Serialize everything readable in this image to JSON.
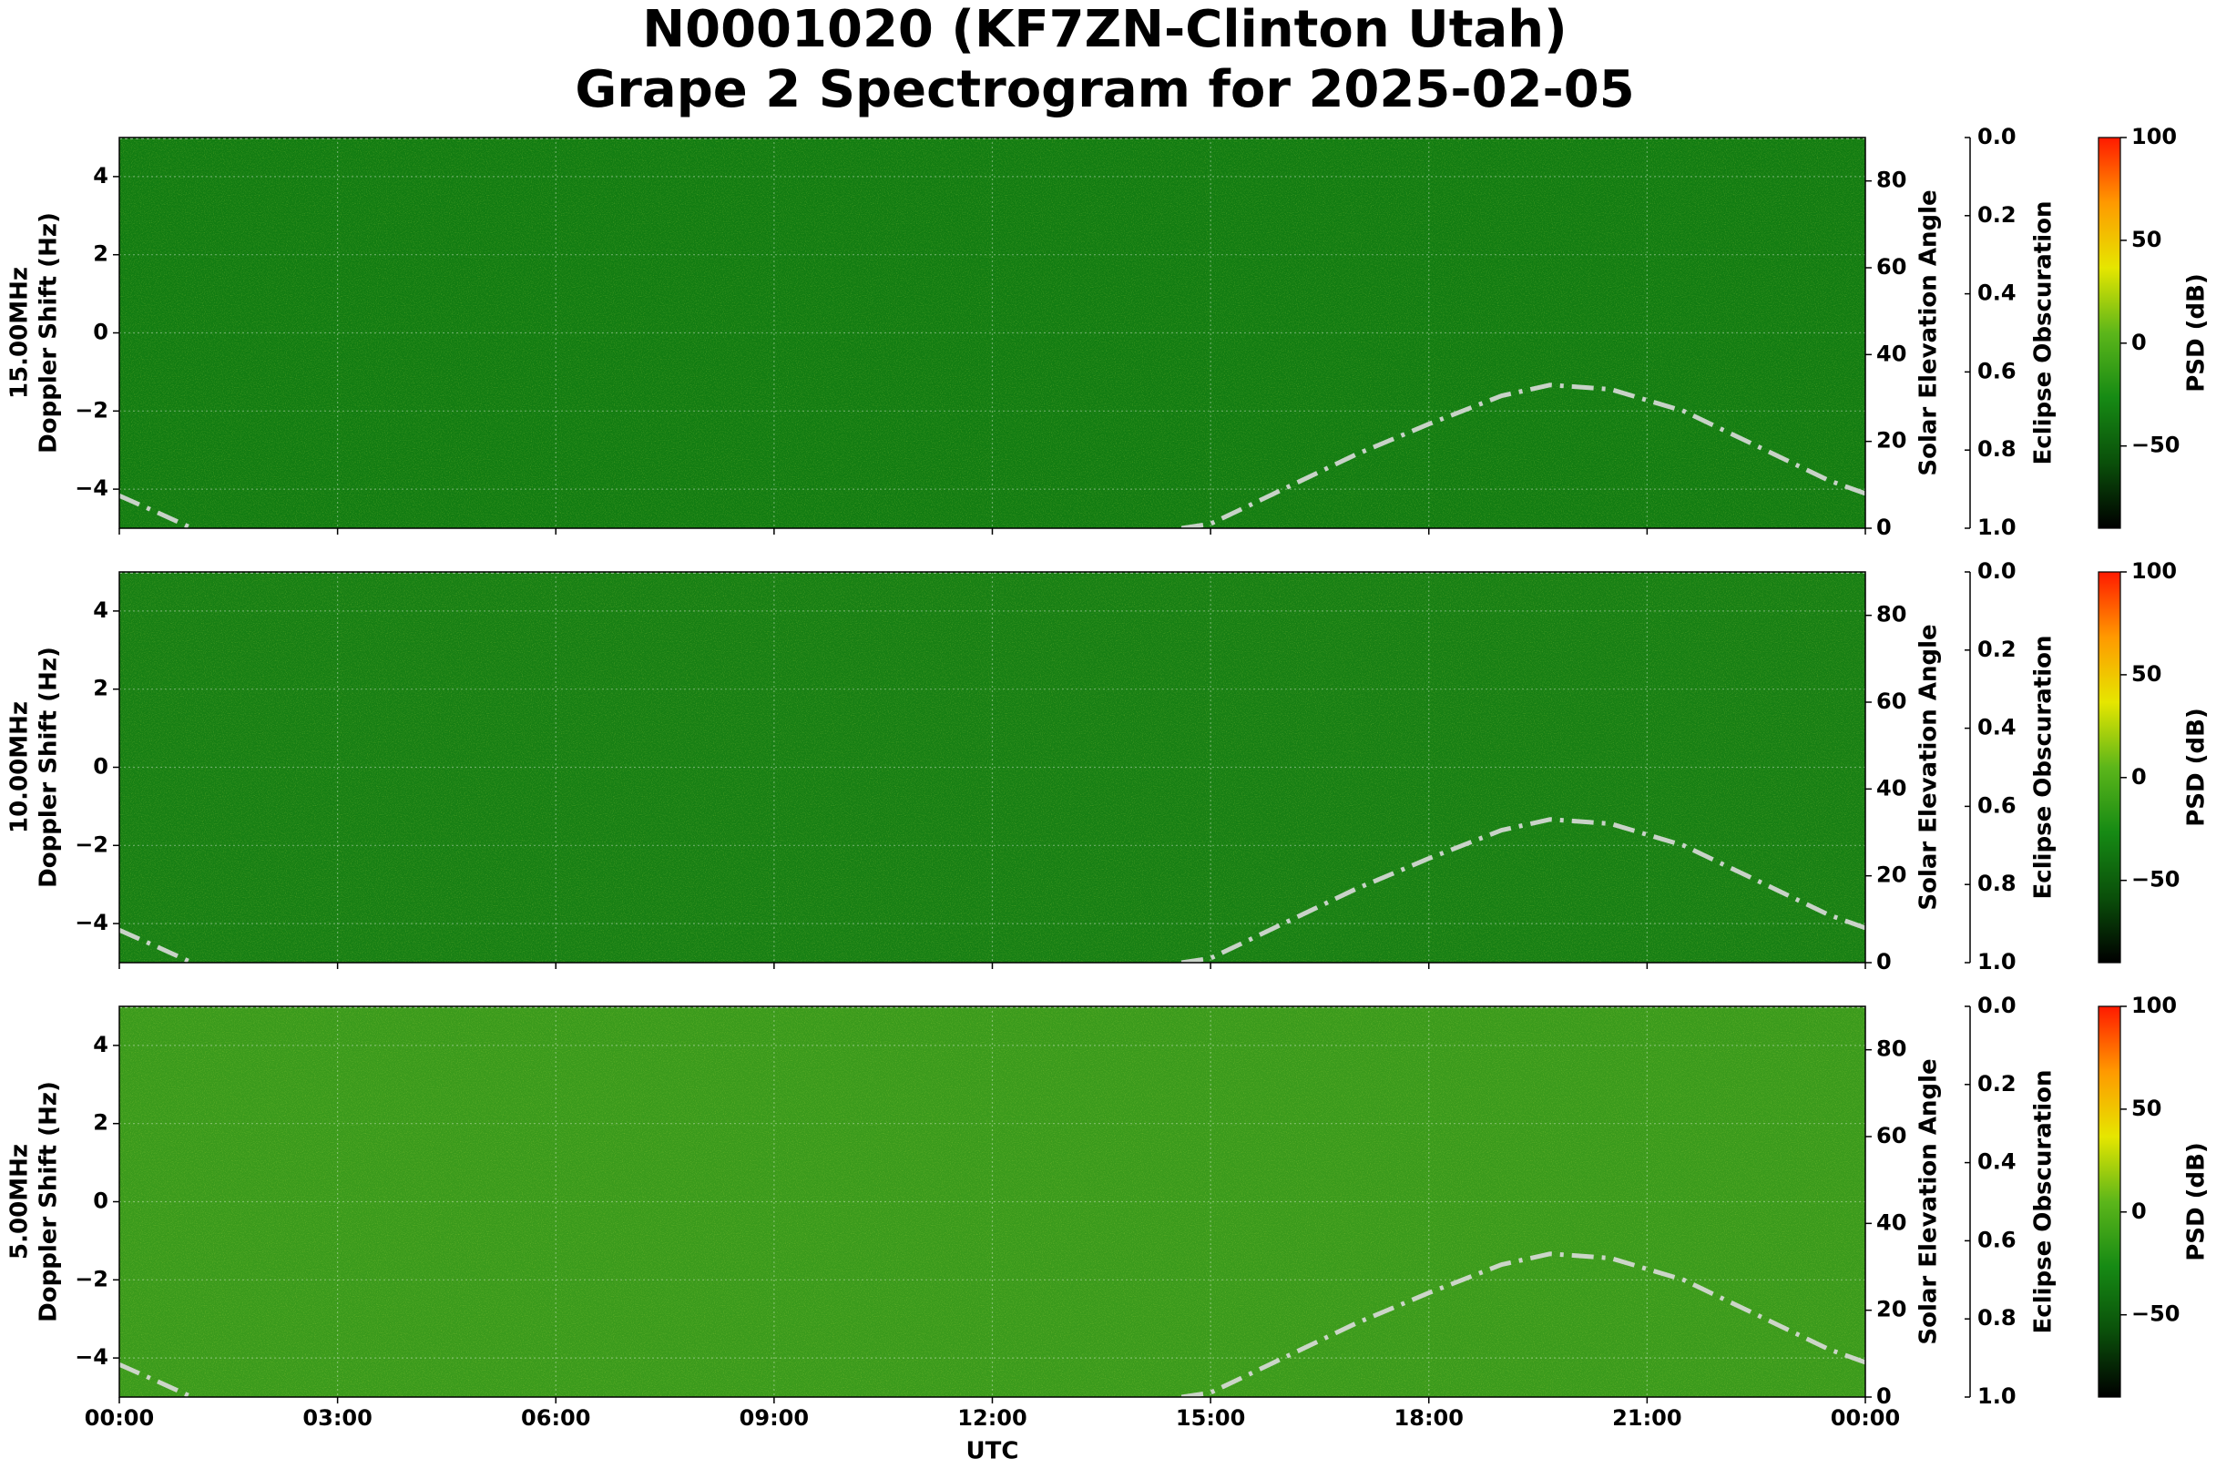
{
  "chart_data": {
    "type": "spectrogram",
    "title": [
      "N0001020 (KF7ZN-Clinton Utah)",
      "Grape 2 Spectrogram for 2025-02-05"
    ],
    "xlabel": "UTC",
    "xlim": [
      0,
      24
    ],
    "xticks": [
      {
        "value": 0,
        "label": "00:00"
      },
      {
        "value": 3,
        "label": "03:00"
      },
      {
        "value": 6,
        "label": "06:00"
      },
      {
        "value": 9,
        "label": "09:00"
      },
      {
        "value": 12,
        "label": "12:00"
      },
      {
        "value": 15,
        "label": "15:00"
      },
      {
        "value": 18,
        "label": "18:00"
      },
      {
        "value": 21,
        "label": "21:00"
      },
      {
        "value": 24,
        "label": "00:00"
      }
    ],
    "grid": true,
    "panels": [
      {
        "ylabel": [
          "15.00MHz",
          "Doppler Shift (Hz)"
        ],
        "background": "#127c12",
        "ylim": [
          -5,
          5
        ],
        "yticks": [
          {
            "value": -4,
            "label": "−4"
          },
          {
            "value": -2,
            "label": "−2"
          },
          0,
          2,
          4
        ],
        "y2label": "Solar Elevation Angle",
        "y2lim": [
          0,
          90
        ],
        "y2ticks": [
          0,
          20,
          40,
          60,
          80
        ],
        "series": [
          {
            "axis": "y2",
            "color": "#dcdcdc",
            "style": "dashdot",
            "x": [
              0,
              0.5,
              1,
              8,
              14.6,
              15,
              16,
              17,
              18,
              19,
              19.67,
              20.5,
              21.5,
              22.5,
              23.5,
              24
            ],
            "values": [
              7.5,
              3.8,
              0,
              null,
              0,
              1,
              9,
              17,
              24,
              30.5,
              33,
              32,
              27,
              19,
              11,
              8
            ]
          }
        ],
        "eclipse": {
          "label": "Eclipse Obscuration",
          "ylim": [
            1,
            0
          ],
          "yticks": [
            {
              "value": 0,
              "label": "0.0"
            },
            {
              "value": 0.2,
              "label": "0.2"
            },
            {
              "value": 0.4,
              "label": "0.4"
            },
            {
              "value": 0.6,
              "label": "0.6"
            },
            {
              "value": 0.8,
              "label": "0.8"
            },
            {
              "value": 1,
              "label": "1.0"
            }
          ]
        },
        "colorbar": {
          "label": "PSD (dB)",
          "clim": [
            -90,
            100
          ],
          "cticks": [
            {
              "value": -50,
              "label": "−50"
            },
            0,
            50,
            100
          ],
          "colormap": [
            "#000000",
            "#0a4f0a",
            "#168a14",
            "#5cb61a",
            "#e6e600",
            "#ff9900",
            "#ff1a00"
          ]
        }
      },
      {
        "ylabel": [
          "10.00MHz",
          "Doppler Shift (Hz)"
        ],
        "background": "#177f14",
        "ylim": [
          -5,
          5
        ],
        "yticks": [
          {
            "value": -4,
            "label": "−4"
          },
          {
            "value": -2,
            "label": "−2"
          },
          0,
          2,
          4
        ],
        "y2label": "Solar Elevation Angle",
        "y2lim": [
          0,
          90
        ],
        "y2ticks": [
          0,
          20,
          40,
          60,
          80
        ],
        "series": [
          {
            "axis": "y2",
            "color": "#dcdcdc",
            "style": "dashdot",
            "x": [
              0,
              0.5,
              1,
              8,
              14.6,
              15,
              16,
              17,
              18,
              19,
              19.67,
              20.5,
              21.5,
              22.5,
              23.5,
              24
            ],
            "values": [
              7.5,
              3.8,
              0,
              null,
              0,
              1,
              9,
              17,
              24,
              30.5,
              33,
              32,
              27,
              19,
              11,
              8
            ]
          }
        ],
        "eclipse": {
          "label": "Eclipse Obscuration",
          "ylim": [
            1,
            0
          ],
          "yticks": [
            {
              "value": 0,
              "label": "0.0"
            },
            {
              "value": 0.2,
              "label": "0.2"
            },
            {
              "value": 0.4,
              "label": "0.4"
            },
            {
              "value": 0.6,
              "label": "0.6"
            },
            {
              "value": 0.8,
              "label": "0.8"
            },
            {
              "value": 1,
              "label": "1.0"
            }
          ]
        },
        "colorbar": {
          "label": "PSD (dB)",
          "clim": [
            -90,
            100
          ],
          "cticks": [
            {
              "value": -50,
              "label": "−50"
            },
            0,
            50,
            100
          ],
          "colormap": [
            "#000000",
            "#0a4f0a",
            "#168a14",
            "#5cb61a",
            "#e6e600",
            "#ff9900",
            "#ff1a00"
          ]
        }
      },
      {
        "ylabel": [
          "5.00MHz",
          "Doppler Shift (Hz)"
        ],
        "background": "#3a9a1c",
        "ylim": [
          -5,
          5
        ],
        "yticks": [
          {
            "value": -4,
            "label": "−4"
          },
          {
            "value": -2,
            "label": "−2"
          },
          0,
          2,
          4
        ],
        "y2label": "Solar Elevation Angle",
        "y2lim": [
          0,
          90
        ],
        "y2ticks": [
          0,
          20,
          40,
          60,
          80
        ],
        "series": [
          {
            "axis": "y2",
            "color": "#dcdcdc",
            "style": "dashdot",
            "x": [
              0,
              0.5,
              1,
              8,
              14.6,
              15,
              16,
              17,
              18,
              19,
              19.67,
              20.5,
              21.5,
              22.5,
              23.5,
              24
            ],
            "values": [
              7.5,
              3.8,
              0,
              null,
              0,
              1,
              9,
              17,
              24,
              30.5,
              33,
              32,
              27,
              19,
              11,
              8
            ]
          }
        ],
        "eclipse": {
          "label": "Eclipse Obscuration",
          "ylim": [
            1,
            0
          ],
          "yticks": [
            {
              "value": 0,
              "label": "0.0"
            },
            {
              "value": 0.2,
              "label": "0.2"
            },
            {
              "value": 0.4,
              "label": "0.4"
            },
            {
              "value": 0.6,
              "label": "0.6"
            },
            {
              "value": 0.8,
              "label": "0.8"
            },
            {
              "value": 1,
              "label": "1.0"
            }
          ]
        },
        "colorbar": {
          "label": "PSD (dB)",
          "clim": [
            -90,
            100
          ],
          "cticks": [
            {
              "value": -50,
              "label": "−50"
            },
            0,
            50,
            100
          ],
          "colormap": [
            "#000000",
            "#0a4f0a",
            "#168a14",
            "#5cb61a",
            "#e6e600",
            "#ff9900",
            "#ff1a00"
          ]
        }
      }
    ]
  }
}
